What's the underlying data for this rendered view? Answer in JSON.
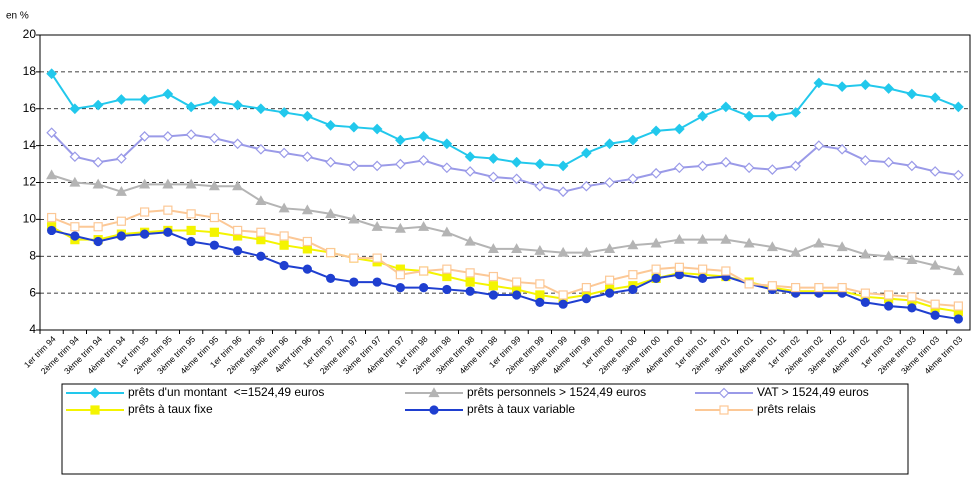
{
  "chart_data": {
    "type": "line",
    "ylabel": "en %",
    "categories": [
      "1er trim 94",
      "2ème trim 94",
      "3ème trim 94",
      "4ème trim 94",
      "1er trim 95",
      "2ème trim 95",
      "3ème trim 95",
      "4ème trim 95",
      "1er trim 96",
      "2ème trim 96",
      "3ème trim 96",
      "4èmr trim 96",
      "1er trim 97",
      "2ème trim 97",
      "3ème trim 97",
      "4ème trim 97",
      "1er trim 98",
      "2ème trim 98",
      "3ème trim 98",
      "4ème trim 98",
      "1er trim 99",
      "2ème trim 99",
      "3ème trim 99",
      "4ème trim 99",
      "1er trim 00",
      "2ème trim 00",
      "3ème trim 00",
      "4ème trim 00",
      "1er trim 01",
      "2ème trim 01",
      "3ème trim 01",
      "4ème trim 01",
      "1er trim 02",
      "2ème trim 02",
      "3ème trim 02",
      "4ème trim 02",
      "1er trim 03",
      "2ème trim 03",
      "3ème trim 03",
      "4ème trim 03"
    ],
    "series": [
      {
        "name": "prêts d'un montant  <=1524,49 euros",
        "color": "#22c8ec",
        "marker": "diamond",
        "filled": true,
        "values": [
          17.9,
          16.0,
          16.2,
          16.5,
          16.5,
          16.8,
          16.1,
          16.4,
          16.2,
          16.0,
          15.8,
          15.6,
          15.1,
          15.0,
          14.9,
          14.3,
          14.5,
          14.1,
          13.4,
          13.3,
          13.1,
          13.0,
          12.9,
          13.6,
          14.1,
          14.3,
          14.8,
          14.9,
          15.6,
          16.1,
          15.6,
          15.6,
          15.8,
          17.4,
          17.2,
          17.3,
          17.1,
          16.8,
          16.6,
          16.1
        ]
      },
      {
        "name": "prêts personnels > 1524,49 euros",
        "color": "#b4b4b4",
        "marker": "triangle",
        "filled": true,
        "values": [
          12.4,
          12.0,
          11.9,
          11.5,
          11.9,
          11.9,
          11.9,
          11.8,
          11.8,
          11.0,
          10.6,
          10.5,
          10.3,
          10.0,
          9.6,
          9.5,
          9.6,
          9.3,
          8.8,
          8.4,
          8.4,
          8.3,
          8.2,
          8.2,
          8.4,
          8.6,
          8.7,
          8.9,
          8.9,
          8.9,
          8.7,
          8.5,
          8.2,
          8.7,
          8.5,
          8.1,
          8.0,
          7.8,
          7.5,
          7.2
        ]
      },
      {
        "name": "VAT > 1524,49 euros",
        "color": "#9a9ae8",
        "marker": "diamond",
        "filled": false,
        "values": [
          14.7,
          13.4,
          13.1,
          13.3,
          14.5,
          14.5,
          14.6,
          14.4,
          14.1,
          13.8,
          13.6,
          13.4,
          13.1,
          12.9,
          12.9,
          13.0,
          13.2,
          12.8,
          12.6,
          12.3,
          12.2,
          11.8,
          11.5,
          11.8,
          12.0,
          12.2,
          12.5,
          12.8,
          12.9,
          13.1,
          12.8,
          12.7,
          12.9,
          14.0,
          13.8,
          13.2,
          13.1,
          12.9,
          12.6,
          12.4
        ]
      },
      {
        "name": "prêts à taux fixe",
        "color": "#f4f400",
        "marker": "square",
        "filled": true,
        "values": [
          9.6,
          8.9,
          8.9,
          9.2,
          9.3,
          9.4,
          9.4,
          9.3,
          9.1,
          8.9,
          8.6,
          8.4,
          8.2,
          7.9,
          7.7,
          7.3,
          7.2,
          6.9,
          6.6,
          6.4,
          6.2,
          5.9,
          5.7,
          5.9,
          6.2,
          6.4,
          6.8,
          7.1,
          7.0,
          6.9,
          6.6,
          6.3,
          6.1,
          6.1,
          6.1,
          5.8,
          5.7,
          5.6,
          5.2,
          5.0
        ]
      },
      {
        "name": "prêts à taux variable",
        "color": "#1f3fd0",
        "marker": "circle",
        "filled": true,
        "values": [
          9.4,
          9.1,
          8.8,
          9.1,
          9.2,
          9.3,
          8.8,
          8.6,
          8.3,
          8.0,
          7.5,
          7.3,
          6.8,
          6.6,
          6.6,
          6.3,
          6.3,
          6.2,
          6.1,
          5.9,
          5.9,
          5.5,
          5.4,
          5.7,
          6.0,
          6.2,
          6.8,
          7.0,
          6.8,
          6.9,
          6.5,
          6.2,
          6.0,
          6.0,
          6.0,
          5.5,
          5.3,
          5.2,
          4.8,
          4.6
        ]
      },
      {
        "name": "prêts relais",
        "color": "#fcc896",
        "marker": "square",
        "filled": false,
        "values": [
          10.1,
          9.6,
          9.6,
          9.9,
          10.4,
          10.5,
          10.3,
          10.1,
          9.4,
          9.3,
          9.1,
          8.8,
          8.2,
          7.9,
          7.9,
          7.0,
          7.2,
          7.3,
          7.1,
          6.9,
          6.6,
          6.5,
          5.9,
          6.3,
          6.7,
          7.0,
          7.3,
          7.4,
          7.3,
          7.2,
          6.5,
          6.4,
          6.3,
          6.3,
          6.3,
          6.0,
          5.9,
          5.8,
          5.4,
          5.3
        ]
      }
    ],
    "ylim": [
      4,
      20
    ],
    "yticks": [
      4,
      6,
      8,
      10,
      12,
      14,
      16,
      18,
      20
    ],
    "grid": true,
    "legend": "bottom"
  }
}
